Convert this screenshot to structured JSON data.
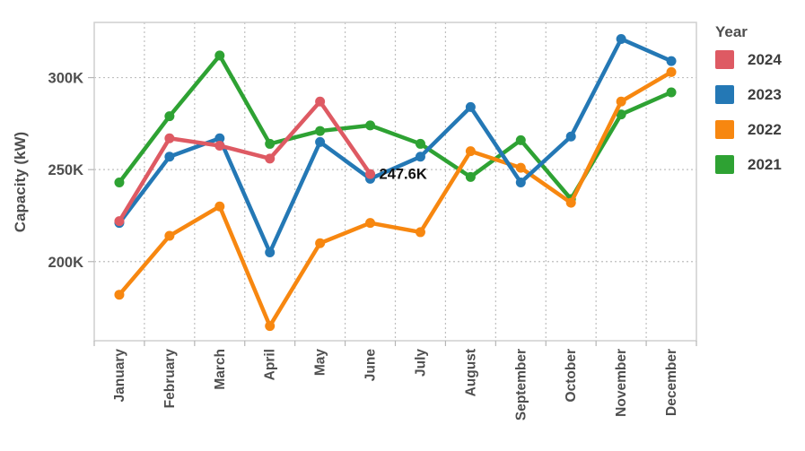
{
  "chart_data": {
    "type": "line",
    "title": "",
    "xlabel": "",
    "ylabel": "Capacity (kW)",
    "categories": [
      "January",
      "February",
      "March",
      "April",
      "May",
      "June",
      "July",
      "August",
      "September",
      "October",
      "November",
      "December"
    ],
    "series": [
      {
        "name": "2024",
        "color": "#DE5A63",
        "values": [
          222,
          267,
          263,
          256,
          287,
          247.6,
          null,
          null,
          null,
          null,
          null,
          null
        ]
      },
      {
        "name": "2023",
        "color": "#2478B5",
        "values": [
          221,
          257,
          267,
          205,
          265,
          245,
          257,
          284,
          243,
          268,
          321,
          309
        ]
      },
      {
        "name": "2022",
        "color": "#F78710",
        "values": [
          182,
          214,
          230,
          165,
          210,
          221,
          216,
          260,
          251,
          232,
          287,
          303
        ]
      },
      {
        "name": "2021",
        "color": "#2EA233",
        "values": [
          243,
          279,
          312,
          264,
          271,
          274,
          264,
          246,
          266,
          234,
          280,
          292
        ]
      }
    ],
    "unit": "K",
    "ylim": [
      157,
      330
    ],
    "y_ticks": [
      {
        "value": 200,
        "label": "200K"
      },
      {
        "value": 250,
        "label": "250K"
      },
      {
        "value": 300,
        "label": "300K"
      }
    ],
    "grid": "dashed",
    "legend_title": "Year",
    "legend_position": "top-right",
    "annotation": {
      "text": "247.6K",
      "series": "2024",
      "category": "June",
      "value": 247.6
    }
  },
  "style_colors": {
    "grid": "#bfbfbf",
    "border": "#cfcfcf",
    "tick": "#b5b5b5",
    "axis_text": "#4e4e4e",
    "annotation_text": "#111111"
  }
}
